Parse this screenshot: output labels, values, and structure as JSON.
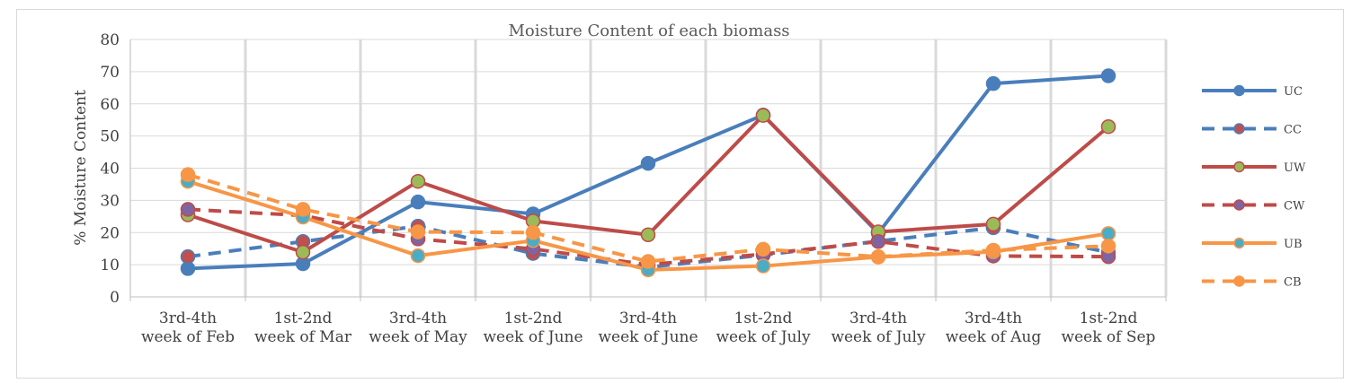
{
  "chart_data": {
    "type": "line",
    "title": "Moisture Content of each biomass",
    "xlabel": "",
    "ylabel": "% Moisture Content",
    "ylim": [
      0,
      80
    ],
    "yticks": [
      0,
      10,
      20,
      30,
      40,
      50,
      60,
      70,
      80
    ],
    "grid": true,
    "legend_position": "right",
    "categories": [
      [
        "3rd-4th",
        "week of Feb"
      ],
      [
        "1st-2nd",
        "week of Mar"
      ],
      [
        "3rd-4th",
        "week of May"
      ],
      [
        "1st-2nd",
        "week of June"
      ],
      [
        "3rd-4th",
        "week of June"
      ],
      [
        "1st-2nd",
        "week of July"
      ],
      [
        "3rd-4th",
        "week of July"
      ],
      [
        "3rd-4th",
        "week of Aug"
      ],
      [
        "1st-2nd",
        "week of Sep"
      ]
    ],
    "series": [
      {
        "name": "UC",
        "color": "#4a7ebb",
        "dashed": false,
        "marker_fill": "#4a7ebb",
        "values": [
          8.8,
          10.3,
          29.5,
          25.8,
          41.5,
          56.5,
          19.8,
          66.3,
          68.7
        ]
      },
      {
        "name": "CC",
        "color": "#4a7ebb",
        "dashed": true,
        "marker_fill": "#c0504d",
        "values": [
          12.5,
          17.2,
          22.0,
          13.5,
          9.2,
          13.0,
          17.3,
          21.5,
          13.8
        ]
      },
      {
        "name": "UW",
        "color": "#be4b48",
        "dashed": false,
        "marker_fill": "#9bbb59",
        "values": [
          25.5,
          13.9,
          35.9,
          23.6,
          19.3,
          56.4,
          20.2,
          22.6,
          52.9
        ]
      },
      {
        "name": "CW",
        "color": "#be4b48",
        "dashed": true,
        "marker_fill": "#8064a2",
        "values": [
          27.2,
          25.3,
          18.0,
          14.9,
          10.0,
          13.3,
          17.2,
          12.7,
          12.5
        ]
      },
      {
        "name": "UB",
        "color": "#f79646",
        "dashed": false,
        "marker_fill": "#4bacc6",
        "values": [
          35.9,
          24.8,
          12.8,
          17.5,
          8.4,
          9.6,
          12.4,
          14.0,
          19.7
        ]
      },
      {
        "name": "CB",
        "color": "#f79646",
        "dashed": true,
        "marker_fill": "#f79646",
        "values": [
          38.0,
          27.2,
          20.2,
          20.0,
          11.0,
          14.8,
          12.5,
          14.5,
          15.8
        ]
      }
    ]
  }
}
